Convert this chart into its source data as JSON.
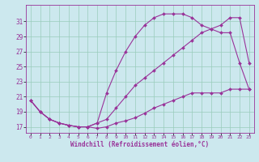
{
  "bg_color": "#cce8ee",
  "grid_color": "#99ccbb",
  "line_color": "#993399",
  "line1_y": [
    20.5,
    19.0,
    18.0,
    17.5,
    17.2,
    17.0,
    17.0,
    17.5,
    21.5,
    24.5,
    27.0,
    29.0,
    30.5,
    31.5,
    32.0,
    32.0,
    32.0,
    31.5,
    30.5,
    30.0,
    29.5,
    29.5,
    25.5,
    22.0
  ],
  "line2_y": [
    20.5,
    19.0,
    18.0,
    17.5,
    17.2,
    17.0,
    17.0,
    17.5,
    18.0,
    19.5,
    21.0,
    22.5,
    23.5,
    24.5,
    25.5,
    26.5,
    27.5,
    28.5,
    29.5,
    30.0,
    30.5,
    31.5,
    31.5,
    25.5
  ],
  "line3_y": [
    20.5,
    19.0,
    18.0,
    17.5,
    17.2,
    17.0,
    17.0,
    16.8,
    17.0,
    17.5,
    17.8,
    18.2,
    18.8,
    19.5,
    20.0,
    20.5,
    21.0,
    21.5,
    21.5,
    21.5,
    21.5,
    22.0,
    22.0,
    22.0
  ],
  "ylim": [
    16.2,
    33.2
  ],
  "xlim": [
    -0.5,
    23.5
  ],
  "yticks": [
    17,
    19,
    21,
    23,
    25,
    27,
    29,
    31
  ],
  "xticks": [
    0,
    1,
    2,
    3,
    4,
    5,
    6,
    7,
    8,
    9,
    10,
    11,
    12,
    13,
    14,
    15,
    16,
    17,
    18,
    19,
    20,
    21,
    22,
    23
  ],
  "xlabel": "Windchill (Refroidissement éolien,°C)"
}
